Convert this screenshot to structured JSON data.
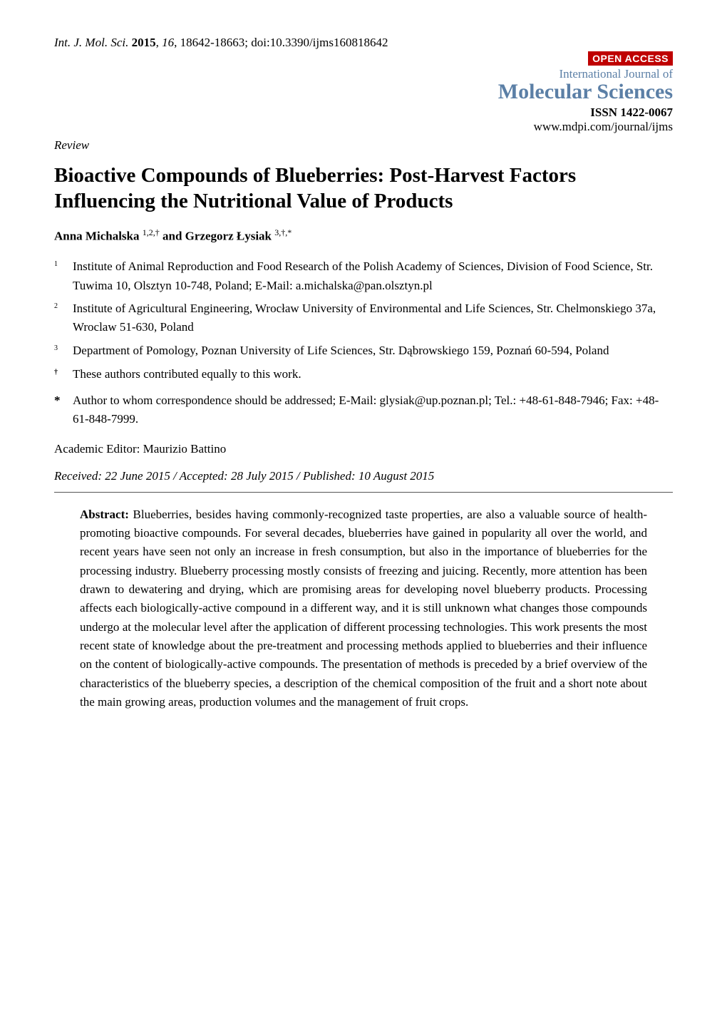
{
  "header": {
    "journal_abbrev_italic": "Int. J. Mol. Sci.",
    "year_bold": "2015",
    "volume_italic": "16",
    "pages": "18642-18663",
    "doi": "doi:10.3390/ijms160818642"
  },
  "open_access": {
    "badge": "OPEN ACCESS",
    "journal_super": "International Journal of",
    "journal_main": "Molecular Sciences",
    "issn": "ISSN 1422-0067",
    "url": "www.mdpi.com/journal/ijms",
    "colors": {
      "badge_bg": "#bf0000",
      "badge_fg": "#ffffff",
      "journal_color": "#5b7fa6"
    }
  },
  "article_type": "Review",
  "title": "Bioactive Compounds of Blueberries: Post-Harvest Factors Influencing the Nutritional Value of Products",
  "authors_line": {
    "author1_name": "Anna Michalska ",
    "author1_sup": "1,2,†",
    "connector": " and ",
    "author2_name": "Grzegorz Łysiak ",
    "author2_sup": "3,†,*"
  },
  "affiliations": [
    {
      "sup": "1",
      "text": "Institute of Animal Reproduction and Food Research of the Polish Academy of Sciences, Division of Food Science, Str. Tuwima 10, Olsztyn 10-748, Poland; E-Mail: a.michalska@pan.olsztyn.pl"
    },
    {
      "sup": "2",
      "text": "Institute of Agricultural Engineering, Wrocław University of Environmental and Life Sciences, Str. Chelmonskiego 37a, Wroclaw 51-630, Poland"
    },
    {
      "sup": "3",
      "text": "Department of Pomology, Poznan University of Life Sciences, Str. Dąbrowskiego 159, Poznań 60-594, Poland"
    }
  ],
  "equal_contrib": {
    "sup": "†",
    "text": "These authors contributed equally to this work."
  },
  "correspondence": {
    "sup": "*",
    "text": "Author to whom correspondence should be addressed; E-Mail: glysiak@up.poznan.pl; Tel.: +48-61-848-7946; Fax: +48-61-848-7999."
  },
  "editor_line": "Academic Editor: Maurizio Battino",
  "dates_line": "Received: 22 June 2015 / Accepted: 28 July 2015 / Published: 10 August 2015",
  "abstract": {
    "label": "Abstract:",
    "body": " Blueberries, besides having commonly-recognized taste properties, are also a valuable source of health-promoting bioactive compounds. For several decades, blueberries have gained in popularity all over the world, and recent years have seen not only an increase in fresh consumption, but also in the importance of blueberries for the processing industry. Blueberry processing mostly consists of freezing and juicing. Recently, more attention has been drawn to dewatering and drying, which are promising areas for developing novel blueberry products. Processing affects each biologically-active compound in a different way, and it is still unknown what changes those compounds undergo at the molecular level after the application of different processing technologies. This work presents the most recent state of knowledge about the pre-treatment and processing methods applied to blueberries and their influence on the content of biologically-active compounds. The presentation of methods is preceded by a brief overview of the characteristics of the blueberry species, a description of the chemical composition of the fruit and a short note about the main growing areas, production volumes and the management of fruit crops."
  }
}
